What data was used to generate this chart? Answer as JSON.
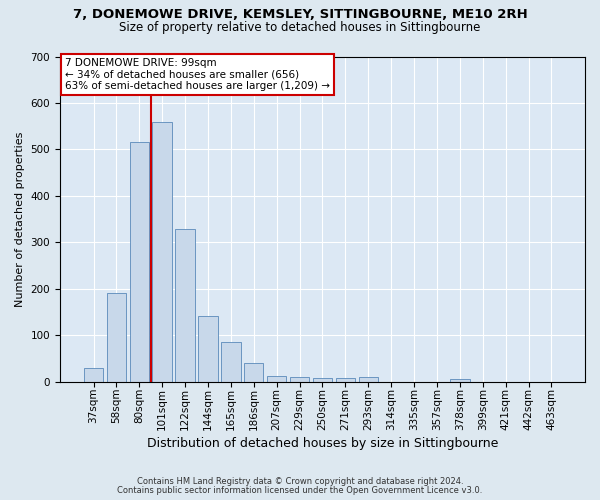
{
  "title1": "7, DONEMOWE DRIVE, KEMSLEY, SITTINGBOURNE, ME10 2RH",
  "title2": "Size of property relative to detached houses in Sittingbourne",
  "xlabel": "Distribution of detached houses by size in Sittingbourne",
  "ylabel": "Number of detached properties",
  "footnote1": "Contains HM Land Registry data © Crown copyright and database right 2024.",
  "footnote2": "Contains public sector information licensed under the Open Government Licence v3.0.",
  "annotation_line1": "7 DONEMOWE DRIVE: 99sqm",
  "annotation_line2": "← 34% of detached houses are smaller (656)",
  "annotation_line3": "63% of semi-detached houses are larger (1,209) →",
  "bar_categories": [
    "37sqm",
    "58sqm",
    "80sqm",
    "101sqm",
    "122sqm",
    "144sqm",
    "165sqm",
    "186sqm",
    "207sqm",
    "229sqm",
    "250sqm",
    "271sqm",
    "293sqm",
    "314sqm",
    "335sqm",
    "357sqm",
    "378sqm",
    "399sqm",
    "421sqm",
    "442sqm",
    "463sqm"
  ],
  "bar_values": [
    30,
    190,
    515,
    560,
    328,
    142,
    85,
    40,
    13,
    10,
    8,
    8,
    10,
    0,
    0,
    0,
    5,
    0,
    0,
    0,
    0
  ],
  "bar_color": "#c8d8ea",
  "bar_edge_color": "#5a8aba",
  "vline_x": 2.5,
  "vline_color": "#cc0000",
  "annotation_box_edgecolor": "#cc0000",
  "ylim": [
    0,
    700
  ],
  "yticks": [
    0,
    100,
    200,
    300,
    400,
    500,
    600,
    700
  ],
  "fig_bg_color": "#dde8f0",
  "plot_bg_color": "#dce8f4",
  "grid_color": "#ffffff",
  "title1_fontsize": 9.5,
  "title2_fontsize": 8.5,
  "xlabel_fontsize": 9.0,
  "ylabel_fontsize": 8.0,
  "tick_fontsize": 7.5,
  "annotation_fontsize": 7.5,
  "footnote_fontsize": 6.0
}
